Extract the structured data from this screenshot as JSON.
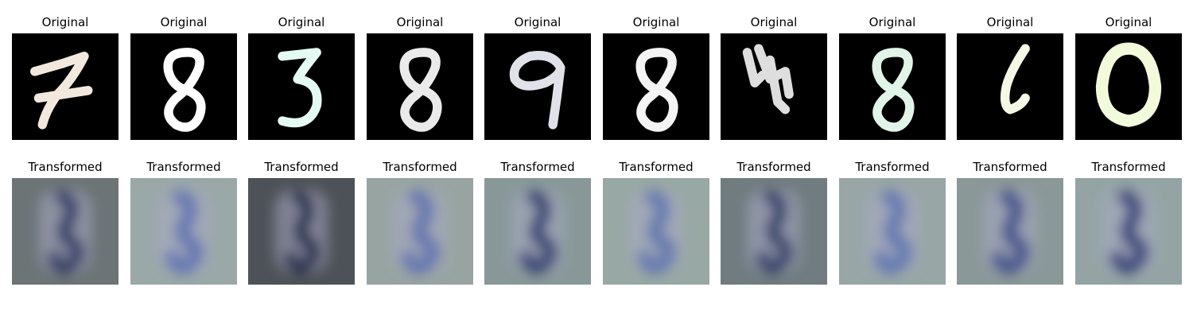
{
  "rows": {
    "original": {
      "title": "Original",
      "digits": [
        {
          "label": "7",
          "color": "#f2e8de"
        },
        {
          "label": "8",
          "color": "#ffffff"
        },
        {
          "label": "3",
          "color": "#e4fbf4"
        },
        {
          "label": "8",
          "color": "#eaeaea"
        },
        {
          "label": "9",
          "color": "#e1e1e9"
        },
        {
          "label": "8",
          "color": "#f4f4f4"
        },
        {
          "label": "4",
          "color": "#dedede"
        },
        {
          "label": "8",
          "color": "#e0f4e8"
        },
        {
          "label": "6",
          "color": "#f4f8e4"
        },
        {
          "label": "0",
          "color": "#f2fadc"
        }
      ]
    },
    "transformed": {
      "title": "Transformed",
      "tiles": [
        {
          "bg": "#6c7476",
          "ink": "#2a3460"
        },
        {
          "bg": "#9aa8a8",
          "ink": "#5a70b0"
        },
        {
          "bg": "#4d5258",
          "ink": "#1f2846"
        },
        {
          "bg": "#98a4a2",
          "ink": "#5c70ae"
        },
        {
          "bg": "#889898",
          "ink": "#2c3a6c"
        },
        {
          "bg": "#98a8a4",
          "ink": "#5a72ae"
        },
        {
          "bg": "#707c80",
          "ink": "#2e3a66"
        },
        {
          "bg": "#98a6a6",
          "ink": "#5c72b0"
        },
        {
          "bg": "#8a9898",
          "ink": "#3a4c88"
        },
        {
          "bg": "#94a4a4",
          "ink": "#2e3c74"
        }
      ]
    }
  }
}
